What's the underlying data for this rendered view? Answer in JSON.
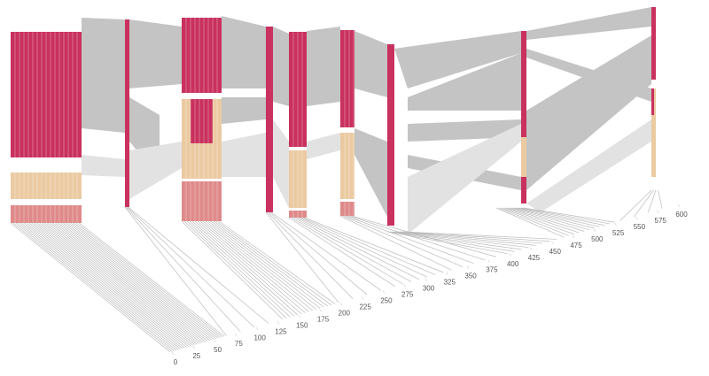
{
  "chart_data": {
    "type": "parallel-flow",
    "xlim": [
      0,
      600
    ],
    "xticks": [
      0,
      25,
      50,
      75,
      100,
      125,
      150,
      175,
      200,
      225,
      250,
      275,
      300,
      325,
      350,
      375,
      400,
      425,
      450,
      475,
      500,
      525,
      550,
      575,
      600
    ]
  }
}
